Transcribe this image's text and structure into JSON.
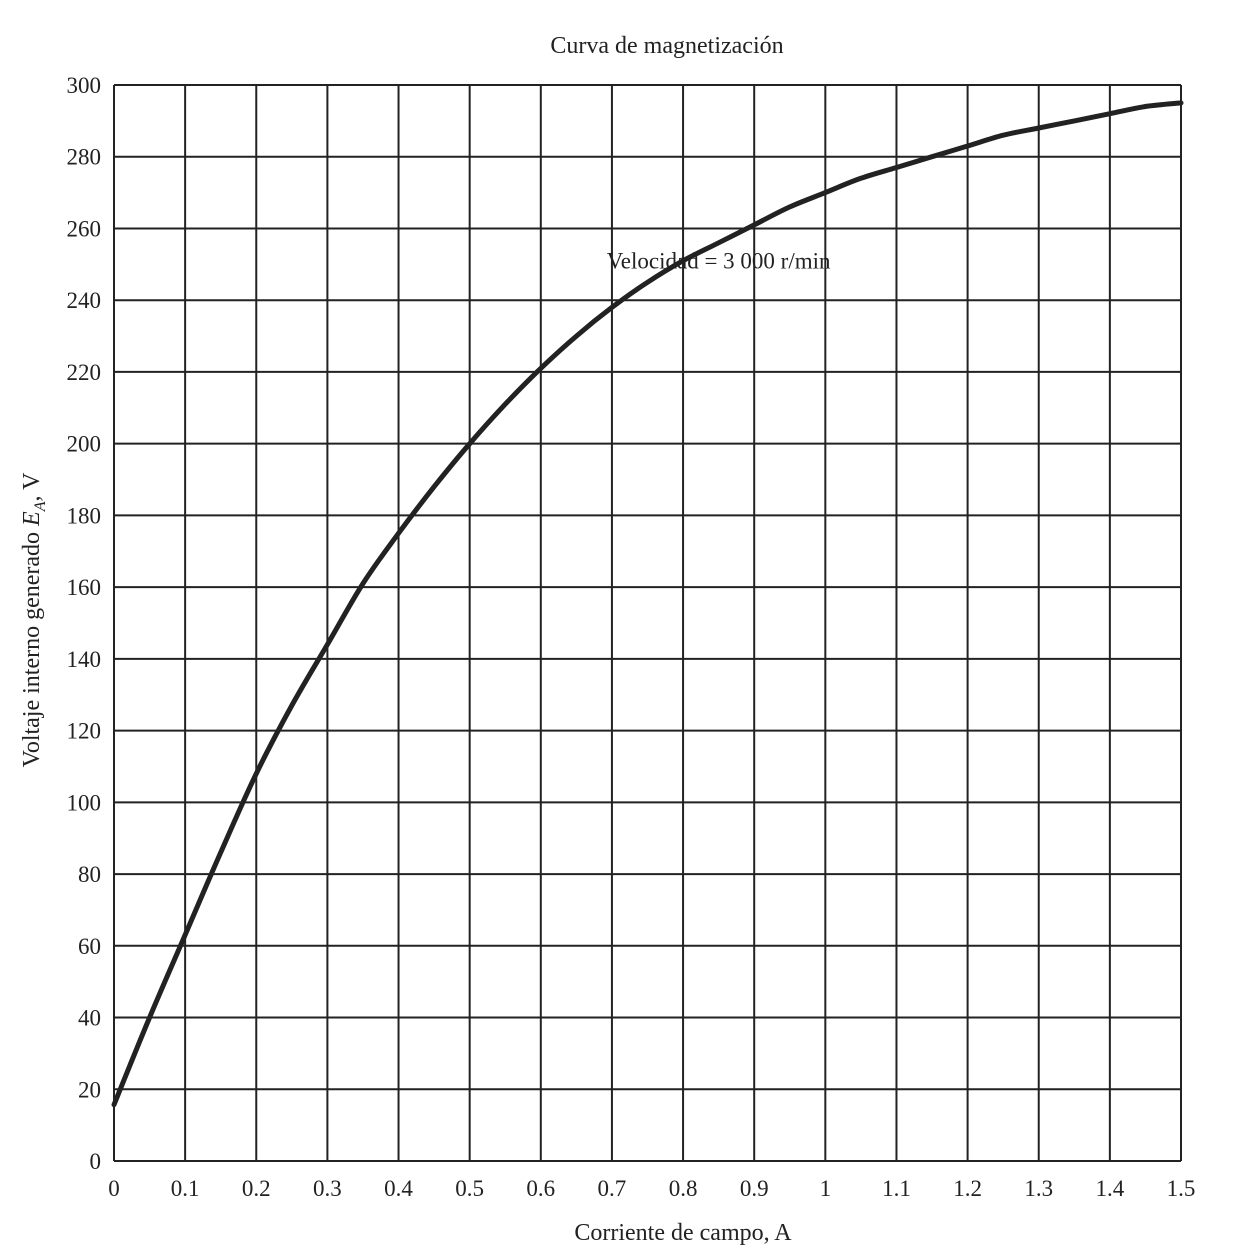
{
  "chart_data": {
    "type": "line",
    "title": "Curva de magnetización",
    "xlabel": "Corriente de campo, A",
    "ylabel_main": "Voltaje interno generado ",
    "ylabel_symbol": "E",
    "ylabel_subscript": "A",
    "ylabel_unit": ", V",
    "xlim": [
      0,
      1.5
    ],
    "ylim": [
      0,
      300
    ],
    "grid": true,
    "x_ticks": [
      "0",
      "0.1",
      "0.2",
      "0.3",
      "0.4",
      "0.5",
      "0.6",
      "0.7",
      "0.8",
      "0.9",
      "1",
      "1.1",
      "1.2",
      "1.3",
      "1.4",
      "1.5"
    ],
    "y_ticks": [
      "0",
      "20",
      "40",
      "60",
      "80",
      "100",
      "120",
      "140",
      "160",
      "180",
      "200",
      "220",
      "240",
      "260",
      "280",
      "300"
    ],
    "annotation": {
      "text": "Velocidad = 3 000 r/min",
      "x": 0.85,
      "y": 251
    },
    "series": [
      {
        "x": [
          0,
          0.05,
          0.1,
          0.15,
          0.2,
          0.25,
          0.3,
          0.35,
          0.4,
          0.45,
          0.5,
          0.55,
          0.6,
          0.65,
          0.7,
          0.75,
          0.8,
          0.85,
          0.9,
          0.95,
          1.0,
          1.05,
          1.1,
          1.15,
          1.2,
          1.25,
          1.3,
          1.35,
          1.4,
          1.45,
          1.5
        ],
        "values": [
          15.7,
          40,
          63,
          86,
          108,
          127,
          144,
          161,
          175,
          188,
          200,
          211,
          221,
          230,
          238,
          245,
          251,
          256,
          261,
          266,
          270,
          274,
          277,
          280,
          283,
          286,
          288,
          290,
          292,
          294,
          295
        ]
      }
    ]
  }
}
